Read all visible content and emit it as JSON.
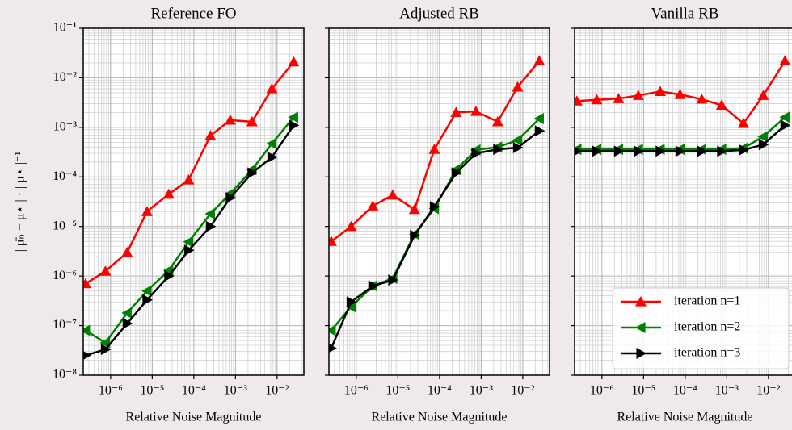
{
  "chart_data": [
    {
      "type": "line",
      "title": "Reference FO",
      "xlabel": "Relative Noise Magnitude",
      "ylabel": "| μ̄ₙ − μ⋆ | · | μ⋆ |⁻¹",
      "xscale": "log",
      "yscale": "log",
      "grid": "both",
      "xlim": [
        2.2e-07,
        0.044
      ],
      "ylim": [
        1e-08,
        0.1
      ],
      "xticks": [
        {
          "value": 1e-06,
          "label": "10⁻⁶"
        },
        {
          "value": 1e-05,
          "label": "10⁻⁵"
        },
        {
          "value": 0.0001,
          "label": "10⁻⁴"
        },
        {
          "value": 0.001,
          "label": "10⁻³"
        },
        {
          "value": 0.01,
          "label": "10⁻²"
        }
      ],
      "yticks": [
        {
          "value": 1e-08,
          "label": "10⁻⁸"
        },
        {
          "value": 1e-07,
          "label": "10⁻⁷"
        },
        {
          "value": 1e-06,
          "label": "10⁻⁶"
        },
        {
          "value": 1e-05,
          "label": "10⁻⁵"
        },
        {
          "value": 0.0001,
          "label": "10⁻⁴"
        },
        {
          "value": 0.001,
          "label": "10⁻³"
        },
        {
          "value": 0.01,
          "label": "10⁻²"
        },
        {
          "value": 0.1,
          "label": "10⁻¹"
        }
      ],
      "x": [
        2.5e-07,
        7.5e-07,
        2.5e-06,
        7.5e-06,
        2.5e-05,
        7.5e-05,
        0.00025,
        0.00075,
        0.0025,
        0.0075,
        0.025
      ],
      "series": [
        {
          "name": "iteration n=1",
          "color": "#ff0000",
          "marker": "^",
          "values": [
            7e-07,
            1.25e-06,
            3e-06,
            2e-05,
            4.5e-05,
            8.7e-05,
            0.00068,
            0.0014,
            0.0013,
            0.006,
            0.021
          ]
        },
        {
          "name": "iteration n=2",
          "color": "#008000",
          "marker": "<",
          "values": [
            8e-08,
            4.5e-08,
            1.8e-07,
            5e-07,
            1.3e-06,
            4.9e-06,
            1.8e-05,
            4.6e-05,
            0.00014,
            0.00047,
            0.0016
          ]
        },
        {
          "name": "iteration n=3",
          "color": "#000000",
          "marker": ">",
          "values": [
            2.5e-08,
            3.3e-08,
            1.1e-07,
            3.3e-07,
            1e-06,
            3.3e-06,
            1e-05,
            3.8e-05,
            0.00012,
            0.00025,
            0.0011
          ]
        }
      ]
    },
    {
      "type": "line",
      "title": "Adjusted RB",
      "xlabel": "Relative Noise Magnitude",
      "xscale": "log",
      "yscale": "log",
      "grid": "both",
      "xlim": [
        2.2e-07,
        0.044
      ],
      "ylim": [
        1e-08,
        0.1
      ],
      "xticks": [
        {
          "value": 1e-06,
          "label": "10⁻⁶"
        },
        {
          "value": 1e-05,
          "label": "10⁻⁵"
        },
        {
          "value": 0.0001,
          "label": "10⁻⁴"
        },
        {
          "value": 0.001,
          "label": "10⁻³"
        },
        {
          "value": 0.01,
          "label": "10⁻²"
        }
      ],
      "yticks": [
        1e-08,
        1e-07,
        1e-06,
        1e-05,
        0.0001,
        0.001,
        0.01,
        0.1
      ],
      "x": [
        2.5e-07,
        7.5e-07,
        2.5e-06,
        7.5e-06,
        2.5e-05,
        7.5e-05,
        0.00025,
        0.00075,
        0.0025,
        0.0075,
        0.025
      ],
      "series": [
        {
          "name": "iteration n=1",
          "color": "#ff0000",
          "marker": "^",
          "values": [
            5e-06,
            1e-05,
            2.6e-05,
            4.3e-05,
            2.2e-05,
            0.00036,
            0.002,
            0.0021,
            0.0013,
            0.0065,
            0.022
          ]
        },
        {
          "name": "iteration n=2",
          "color": "#008000",
          "marker": "<",
          "values": [
            8e-08,
            2.4e-07,
            6.3e-07,
            9e-07,
            7e-06,
            2.3e-05,
            0.00014,
            0.00035,
            0.0004,
            0.00055,
            0.0015
          ]
        },
        {
          "name": "iteration n=3",
          "color": "#000000",
          "marker": ">",
          "values": [
            3.5e-08,
            3e-07,
            6.3e-07,
            8.3e-07,
            6.6e-06,
            2.5e-05,
            0.00012,
            0.0003,
            0.00036,
            0.00039,
            0.00085
          ]
        }
      ]
    },
    {
      "type": "line",
      "title": "Vanilla RB",
      "xlabel": "Relative Noise Magnitude",
      "xscale": "log",
      "yscale": "log",
      "grid": "both",
      "legend": "lower right",
      "xlim": [
        2.2e-07,
        0.044
      ],
      "ylim": [
        1e-08,
        0.1
      ],
      "xticks": [
        {
          "value": 1e-06,
          "label": "10⁻⁶"
        },
        {
          "value": 1e-05,
          "label": "10⁻⁵"
        },
        {
          "value": 0.0001,
          "label": "10⁻⁴"
        },
        {
          "value": 0.001,
          "label": "10⁻³"
        },
        {
          "value": 0.01,
          "label": "10⁻²"
        }
      ],
      "yticks": [
        1e-08,
        1e-07,
        1e-06,
        1e-05,
        0.0001,
        0.001,
        0.01,
        0.1
      ],
      "x": [
        2.5e-07,
        7.5e-07,
        2.5e-06,
        7.5e-06,
        2.5e-05,
        7.5e-05,
        0.00025,
        0.00075,
        0.0025,
        0.0075,
        0.025
      ],
      "series": [
        {
          "name": "iteration n=1",
          "color": "#ff0000",
          "marker": "^",
          "values": [
            0.0034,
            0.0036,
            0.0038,
            0.0044,
            0.0053,
            0.0046,
            0.0037,
            0.0028,
            0.0012,
            0.0044,
            0.022
          ]
        },
        {
          "name": "iteration n=2",
          "color": "#008000",
          "marker": "<",
          "values": [
            0.00036,
            0.00036,
            0.00036,
            0.00036,
            0.00036,
            0.00036,
            0.00036,
            0.00036,
            0.00038,
            0.00065,
            0.0016
          ]
        },
        {
          "name": "iteration n=3",
          "color": "#000000",
          "marker": ">",
          "values": [
            0.00033,
            0.00033,
            0.00033,
            0.00033,
            0.00033,
            0.00033,
            0.00033,
            0.00033,
            0.00035,
            0.00045,
            0.0011
          ]
        }
      ]
    }
  ]
}
